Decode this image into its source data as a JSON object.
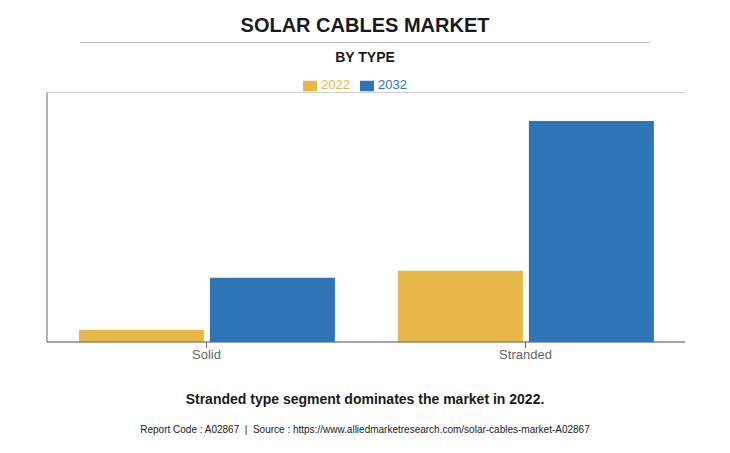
{
  "chart_data": {
    "type": "bar",
    "title": "SOLAR CABLES MARKET",
    "subtitle": "BY TYPE",
    "categories": [
      "Solid",
      "Stranded"
    ],
    "series": [
      {
        "name": "2022",
        "color": "#E8B84B",
        "values": [
          0.05,
          0.3
        ]
      },
      {
        "name": "2032",
        "color": "#2E75B6",
        "values": [
          0.27,
          0.93
        ]
      }
    ],
    "ylim": [
      0,
      1.05
    ],
    "yticks": [
      0,
      0.16666666666666666,
      0.3333333333333333,
      0.5,
      0.6666666666666666,
      0.8333333333333334,
      1
    ],
    "grid": true,
    "tick_labels": "x",
    "legend": "top",
    "annotations": [
      "Stranded type segment dominates the market in 2022.",
      "Report Code : A02867  |  Source : https://www.alliedmarketresearch.com/solar-cables-market-A02867"
    ]
  }
}
